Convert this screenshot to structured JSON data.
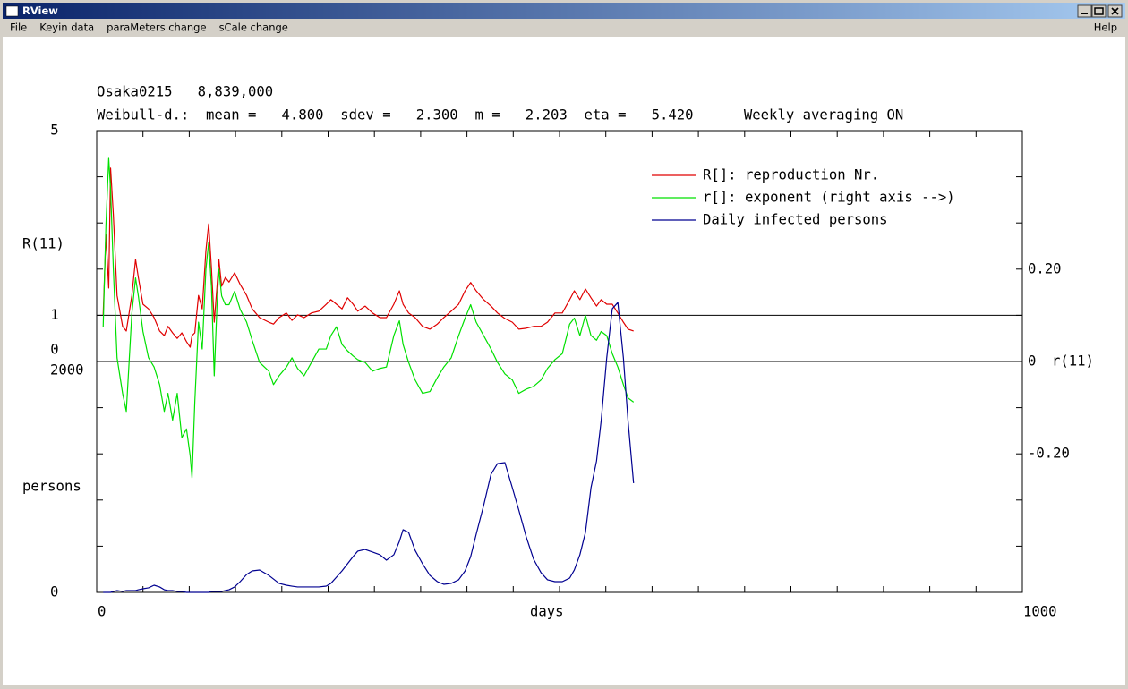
{
  "window": {
    "title": "RView",
    "menu": [
      "File",
      "Keyin data",
      "paraMeters change",
      "sCale change"
    ],
    "help": "Help"
  },
  "chart_data": {
    "type": "line",
    "title": "Osaka0215   8,839,000",
    "subtitle": "Weibull-d.:  mean =   4.800  sdev =   2.300  m =   2.203  eta =   5.420      Weekly averaging ON",
    "xlabel": "days",
    "ylabel": "R(11)",
    "y2label": "r(11)",
    "y3label": "persons",
    "xlim": [
      0,
      1000
    ],
    "xticks": [
      0,
      1000
    ],
    "minor_xticks": [
      50,
      100,
      150,
      200,
      250,
      300,
      350,
      400,
      450,
      500,
      550,
      600,
      650,
      700,
      750,
      800,
      850,
      900,
      950
    ],
    "ylim": [
      -5,
      5
    ],
    "yticks": [
      0,
      1,
      5
    ],
    "minor_yticks": [
      -4,
      -3,
      -2,
      -1,
      0,
      1,
      2,
      3,
      4
    ],
    "y2lim": [
      -0.5,
      0.5
    ],
    "y2ticks": [
      {
        "value": -0.2,
        "label": "-0.20"
      },
      0,
      {
        "value": 0.2,
        "label": "0.20"
      }
    ],
    "y3lim": [
      0,
      4000
    ],
    "y3ticks": [
      0,
      2000
    ],
    "legend": "upper right",
    "x": [
      7,
      10,
      13,
      15,
      18,
      22,
      28,
      32,
      38,
      42,
      45,
      50,
      56,
      62,
      68,
      73,
      77,
      82,
      87,
      92,
      97,
      101,
      103,
      106,
      110,
      114,
      118,
      121,
      124,
      127,
      130,
      132,
      135,
      139,
      143,
      149,
      155,
      162,
      168,
      176,
      186,
      191,
      197,
      205,
      211,
      217,
      224,
      232,
      240,
      248,
      253,
      259,
      265,
      271,
      277,
      282,
      290,
      298,
      306,
      313,
      321,
      327,
      331,
      337,
      344,
      352,
      360,
      368,
      375,
      383,
      391,
      398,
      404,
      410,
      418,
      426,
      433,
      441,
      449,
      456,
      464,
      472,
      480,
      487,
      495,
      503,
      511,
      516,
      522,
      528,
      534,
      540,
      545,
      551,
      557,
      563,
      569,
      574,
      580
    ],
    "series": [
      {
        "name": "R[]: reproduction Nr.",
        "color": "#e00000",
        "axis": "y",
        "values": [
          1.01,
          2.75,
          1.59,
          4.19,
          3.18,
          1.43,
          0.76,
          0.66,
          1.43,
          2.21,
          1.82,
          1.24,
          1.14,
          0.95,
          0.66,
          0.56,
          0.76,
          0.62,
          0.5,
          0.62,
          0.43,
          0.31,
          0.56,
          0.62,
          1.43,
          1.14,
          2.4,
          2.98,
          2.02,
          0.85,
          1.63,
          2.21,
          1.63,
          1.82,
          1.72,
          1.92,
          1.67,
          1.43,
          1.14,
          0.95,
          0.85,
          0.81,
          0.95,
          1.05,
          0.89,
          1.01,
          0.95,
          1.05,
          1.09,
          1.24,
          1.34,
          1.24,
          1.14,
          1.38,
          1.24,
          1.09,
          1.2,
          1.05,
          0.95,
          0.95,
          1.24,
          1.53,
          1.24,
          1.05,
          0.95,
          0.76,
          0.7,
          0.81,
          0.95,
          1.09,
          1.24,
          1.53,
          1.71,
          1.53,
          1.34,
          1.2,
          1.05,
          0.93,
          0.85,
          0.7,
          0.72,
          0.76,
          0.76,
          0.85,
          1.05,
          1.05,
          1.34,
          1.53,
          1.34,
          1.57,
          1.38,
          1.2,
          1.34,
          1.24,
          1.24,
          1.05,
          0.85,
          0.7,
          0.66
        ]
      },
      {
        "name": "r[]: exponent (right axis -->)",
        "color": "#00e000",
        "axis": "y2",
        "values": [
          0.075,
          0.296,
          0.44,
          0.373,
          0.2,
          0.008,
          -0.069,
          -0.108,
          0.104,
          0.181,
          0.142,
          0.065,
          0.008,
          -0.012,
          -0.05,
          -0.108,
          -0.069,
          -0.127,
          -0.069,
          -0.165,
          -0.146,
          -0.204,
          -0.252,
          -0.088,
          0.085,
          0.027,
          0.2,
          0.258,
          0.162,
          -0.031,
          0.123,
          0.2,
          0.142,
          0.123,
          0.123,
          0.152,
          0.113,
          0.085,
          0.046,
          -0.002,
          -0.021,
          -0.05,
          -0.031,
          -0.012,
          0.008,
          -0.015,
          -0.031,
          -0.002,
          0.027,
          0.027,
          0.056,
          0.075,
          0.037,
          0.023,
          0.012,
          0.004,
          -0.002,
          -0.021,
          -0.015,
          -0.012,
          0.056,
          0.088,
          0.037,
          -0.002,
          -0.04,
          -0.069,
          -0.065,
          -0.035,
          -0.012,
          0.008,
          0.056,
          0.094,
          0.123,
          0.085,
          0.056,
          0.027,
          -0.002,
          -0.027,
          -0.04,
          -0.069,
          -0.06,
          -0.054,
          -0.04,
          -0.015,
          0.004,
          0.017,
          0.081,
          0.094,
          0.056,
          0.1,
          0.056,
          0.046,
          0.065,
          0.056,
          0.017,
          -0.012,
          -0.05,
          -0.079,
          -0.088
        ]
      },
      {
        "name": "Daily infected persons",
        "color": "#000090",
        "axis": "y3",
        "values": [
          0,
          0,
          0,
          0,
          8,
          16,
          8,
          16,
          16,
          16,
          23,
          31,
          39,
          62,
          47,
          23,
          16,
          16,
          8,
          8,
          0,
          0,
          0,
          0,
          0,
          0,
          0,
          0,
          8,
          8,
          8,
          8,
          8,
          16,
          23,
          47,
          93,
          155,
          186,
          194,
          147,
          116,
          78,
          62,
          54,
          47,
          47,
          47,
          47,
          54,
          78,
          132,
          186,
          248,
          310,
          357,
          372,
          349,
          326,
          279,
          326,
          442,
          543,
          519,
          364,
          248,
          147,
          93,
          70,
          78,
          109,
          186,
          310,
          504,
          752,
          1023,
          1116,
          1124,
          907,
          713,
          481,
          287,
          171,
          109,
          93,
          93,
          124,
          194,
          326,
          519,
          907,
          1139,
          1488,
          2031,
          2457,
          2511,
          2031,
          1488,
          946
        ]
      }
    ]
  }
}
